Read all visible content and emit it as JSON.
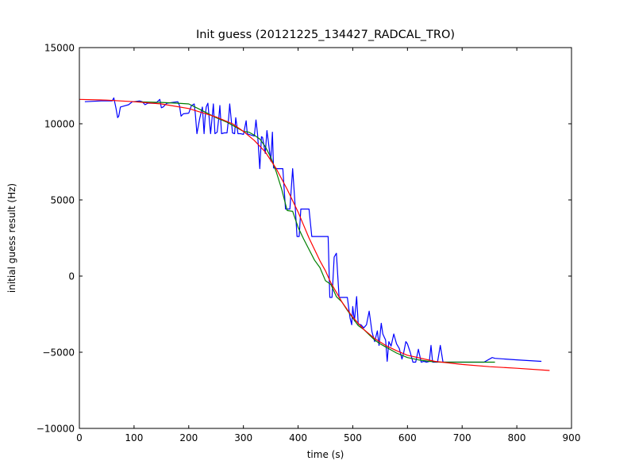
{
  "chart_data": {
    "type": "line",
    "title": "Init guess (20121225_134427_RADCAL_TRO)",
    "xlabel": "time (s)",
    "ylabel": "initial guess result (Hz)",
    "xlim": [
      0,
      900
    ],
    "ylim": [
      -10000,
      15000
    ],
    "xticks": [
      0,
      100,
      200,
      300,
      400,
      500,
      600,
      700,
      800,
      900
    ],
    "yticks": [
      -10000,
      -5000,
      0,
      5000,
      10000,
      15000
    ],
    "xtick_labels": [
      "0",
      "100",
      "200",
      "300",
      "400",
      "500",
      "600",
      "700",
      "800",
      "900"
    ],
    "ytick_labels": [
      "−10000",
      "−5000",
      "0",
      "5000",
      "10000",
      "15000"
    ],
    "grid": false,
    "legend": "none",
    "series": [
      {
        "color": "#0000ff",
        "x": [
          10,
          40,
          60,
          63,
          67,
          70,
          72,
          75,
          80,
          90,
          97,
          100,
          110,
          115,
          120,
          125,
          140,
          147,
          150,
          153,
          160,
          180,
          183,
          186,
          190,
          200,
          205,
          210,
          212,
          215,
          220,
          225,
          228,
          230,
          232,
          235,
          240,
          243,
          245,
          248,
          252,
          255,
          257,
          260,
          265,
          270,
          273,
          275,
          280,
          284,
          286,
          290,
          295,
          300,
          305,
          307,
          310,
          315,
          320,
          323,
          326,
          330,
          333,
          335,
          340,
          343,
          347,
          350,
          353,
          355,
          362,
          365,
          368,
          372,
          377,
          380,
          385,
          390,
          395,
          398,
          402,
          405,
          420,
          425,
          428,
          432,
          438,
          455,
          458,
          462,
          466,
          470,
          475,
          478,
          480,
          485,
          490,
          495,
          498,
          500,
          503,
          507,
          510,
          515,
          520,
          525,
          530,
          535,
          540,
          545,
          548,
          552,
          555,
          560,
          563,
          566,
          570,
          575,
          580,
          585,
          590,
          593,
          597,
          600,
          605,
          610,
          615,
          620,
          625,
          630,
          635,
          640,
          643,
          646,
          650,
          655,
          660,
          665,
          670,
          680,
          690,
          700,
          720,
          740,
          755,
          760,
          800,
          845
        ],
        "y": [
          11450,
          11500,
          11500,
          11700,
          11000,
          10400,
          10500,
          11100,
          11150,
          11250,
          11450,
          11450,
          11500,
          11450,
          11250,
          11350,
          11350,
          11600,
          11050,
          11100,
          11350,
          11450,
          11200,
          10500,
          10650,
          10700,
          11200,
          11300,
          10700,
          9350,
          10350,
          11100,
          9350,
          10400,
          11100,
          11350,
          9350,
          10500,
          11300,
          9350,
          9450,
          10400,
          11200,
          9350,
          9400,
          9400,
          10400,
          11300,
          9400,
          9350,
          10400,
          9350,
          9350,
          9300,
          10200,
          9350,
          9300,
          9250,
          9200,
          10250,
          9250,
          7050,
          9150,
          9100,
          8050,
          9550,
          8450,
          7550,
          9450,
          7100,
          7050,
          7050,
          7050,
          7050,
          4400,
          4400,
          4400,
          7050,
          4400,
          2600,
          2600,
          4400,
          4400,
          2600,
          2600,
          2600,
          2600,
          2600,
          -1400,
          -1400,
          1250,
          1500,
          -1400,
          -1400,
          -1400,
          -1400,
          -1400,
          -2750,
          -3200,
          -2000,
          -2950,
          -1350,
          -3150,
          -3200,
          -3400,
          -3200,
          -2300,
          -3650,
          -4300,
          -3600,
          -4550,
          -3100,
          -3800,
          -4200,
          -5600,
          -4300,
          -4600,
          -3800,
          -4450,
          -4750,
          -5450,
          -5050,
          -4300,
          -4450,
          -5000,
          -5650,
          -5650,
          -4800,
          -5650,
          -5600,
          -5650,
          -5600,
          -4550,
          -5650,
          -5650,
          -5650,
          -4550,
          -5650,
          -5650,
          -5650,
          -5650,
          -5650,
          -5650,
          -5650,
          -5350,
          -5400,
          -5500,
          -5600
        ]
      },
      {
        "color": "#007f00",
        "x": [
          100,
          150,
          180,
          200,
          220,
          250,
          270,
          285,
          300,
          310,
          320,
          330,
          340,
          350,
          360,
          370,
          380,
          390,
          400,
          410,
          420,
          430,
          440,
          450,
          460,
          470,
          480,
          490,
          500,
          510,
          520,
          530,
          540,
          550,
          560,
          570,
          580,
          590,
          600,
          620,
          640,
          660,
          680,
          700,
          720,
          740,
          760
        ],
        "y": [
          11450,
          11400,
          11350,
          11300,
          10950,
          10400,
          10100,
          9800,
          9500,
          9450,
          9250,
          9000,
          8500,
          7800,
          6850,
          5700,
          4300,
          4250,
          3200,
          2450,
          1750,
          1050,
          550,
          -300,
          -550,
          -1350,
          -1700,
          -2250,
          -2750,
          -3250,
          -3500,
          -3850,
          -4200,
          -4450,
          -4650,
          -4850,
          -5050,
          -5200,
          -5350,
          -5500,
          -5600,
          -5650,
          -5650,
          -5650,
          -5650,
          -5650,
          -5650
        ]
      },
      {
        "color": "#ff0000",
        "x": [
          0,
          50,
          100,
          150,
          200,
          250,
          280,
          300,
          320,
          340,
          360,
          380,
          400,
          420,
          440,
          450,
          460,
          480,
          500,
          520,
          540,
          560,
          580,
          600,
          650,
          700,
          750,
          800,
          860
        ],
        "y": [
          11600,
          11550,
          11450,
          11300,
          11000,
          10450,
          10000,
          9500,
          8900,
          8150,
          7050,
          5700,
          4200,
          2500,
          1000,
          350,
          -450,
          -1700,
          -2700,
          -3500,
          -4100,
          -4550,
          -4900,
          -5200,
          -5600,
          -5800,
          -5950,
          -6050,
          -6200
        ]
      }
    ]
  }
}
